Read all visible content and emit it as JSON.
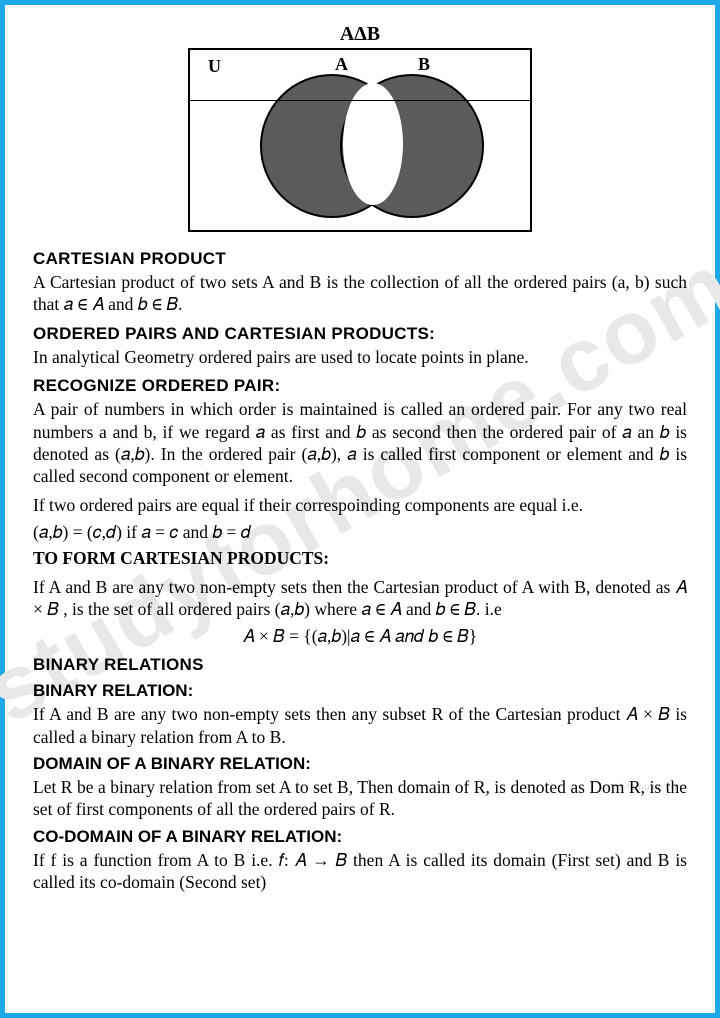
{
  "venn": {
    "title": "AΔB",
    "labels": {
      "u": "U",
      "a": "A",
      "b": "B"
    },
    "colors": {
      "border": "#000000",
      "fill": "#5b5b5b",
      "intersection": "#ffffff",
      "page_border": "#1ea8e8"
    }
  },
  "sections": {
    "cartesian_product": {
      "heading": "CARTESIAN PRODUCT",
      "body": "A Cartesian product of two sets A and B is the collection of all the ordered pairs (a, b) such that 𝑎 ∈ 𝐴 and 𝑏 ∈ 𝐵."
    },
    "ordered_pairs": {
      "heading": "ORDERED PAIRS AND CARTESIAN PRODUCTS:",
      "body": "In analytical Geometry ordered pairs are used to locate points in plane."
    },
    "recognize": {
      "heading": "RECOGNIZE ORDERED PAIR:",
      "body1": "A pair of numbers in which order is maintained is called an ordered pair. For any two real numbers a and b, if we regard 𝑎 as first and 𝑏 as second then the ordered pair of 𝑎 an  𝑏 is denoted as (𝑎,𝑏). In the ordered pair  (𝑎,𝑏), 𝑎 is called first component or element and 𝑏 is called second component or element.",
      "body2": "If two ordered pairs are equal if their correspoinding components are equal i.e.",
      "formula": "(𝑎,𝑏) = (𝑐,𝑑) if 𝑎 = 𝑐 and 𝑏 = 𝑑"
    },
    "form_cartesian": {
      "heading": "TO FORM CARTESIAN PRODUCTS:",
      "body": "If A and B are any two non-empty sets then the Cartesian product of A with B, denoted as 𝐴 × 𝐵 , is the set of all ordered pairs (𝑎,𝑏) where 𝑎 ∈ 𝐴 and 𝑏 ∈ 𝐵. i.e",
      "formula": "𝐴 × 𝐵 = {(𝑎,𝑏)|𝑎 ∈ 𝐴 𝑎𝑛𝑑 𝑏 ∈ 𝐵}"
    },
    "binary_relations": {
      "heading": "BINARY RELATIONS"
    },
    "binary_relation": {
      "heading": "BINARY RELATION:",
      "body": "If A and B are any two non-empty sets then any subset R of the Cartesian product 𝐴 × 𝐵 is called a binary relation from A to B."
    },
    "domain": {
      "heading": "DOMAIN OF A BINARY RELATION:",
      "body": "Let R be a binary relation from set A to set B, Then domain of R, is denoted as Dom R, is the set of first components of all the ordered pairs of R."
    },
    "codomain": {
      "heading": "CO-DOMAIN OF A BINARY RELATION:",
      "body": "If f is a function from A to B i.e. 𝑓: 𝐴 → 𝐵 then A is called its domain (First set) and B is called its co-domain (Second set)"
    }
  },
  "watermark": {
    "main": "studyforhome.com",
    "small": "studyforhome.com"
  }
}
